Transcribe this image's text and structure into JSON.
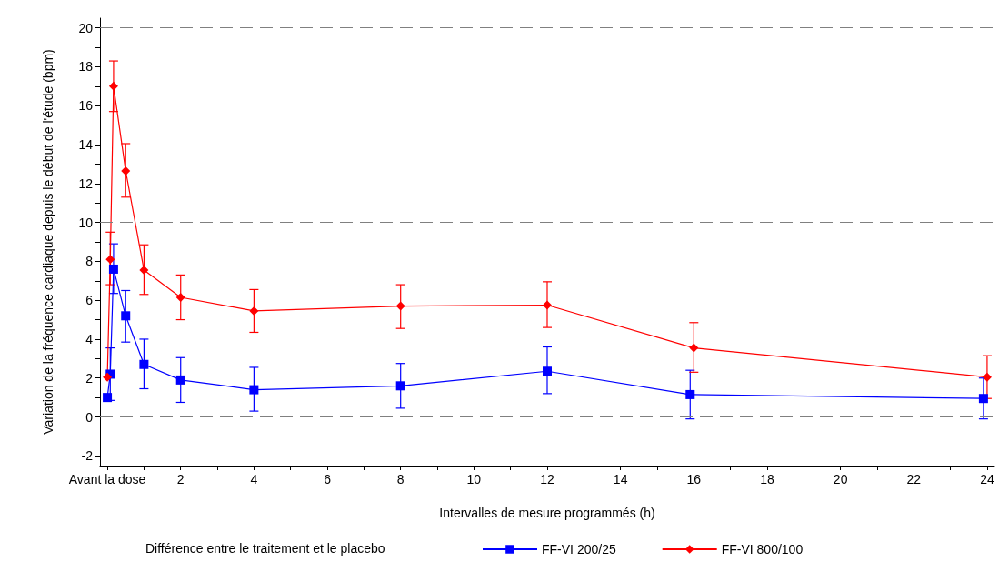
{
  "chart_data": {
    "type": "line",
    "xlabel": "Intervalles de mesure programmés (h)",
    "ylabel": "Variation de la fréquence cardiaque depuis le début de l'étude (bpm)",
    "legend_title": "Différence entre le traitement et le placebo",
    "legend": "bottom",
    "grid": false,
    "line_style": "solid",
    "xlim": [
      -0.2,
      24.2
    ],
    "xticks": [
      {
        "value": 0,
        "label": "Avant la dose"
      },
      {
        "value": 1,
        "label": null
      },
      2,
      {
        "value": 3,
        "label": null
      },
      4,
      {
        "value": 5,
        "label": null
      },
      6,
      {
        "value": 7,
        "label": null
      },
      8,
      {
        "value": 9,
        "label": null
      },
      10,
      {
        "value": 11,
        "label": null
      },
      12,
      {
        "value": 13,
        "label": null
      },
      14,
      {
        "value": 15,
        "label": null
      },
      16,
      {
        "value": 17,
        "label": null
      },
      18,
      {
        "value": 19,
        "label": null
      },
      20,
      {
        "value": 21,
        "label": null
      },
      22,
      {
        "value": 23,
        "label": null
      },
      24
    ],
    "ylim": [
      -2.5,
      20.5
    ],
    "yticks": [
      -2,
      {
        "value": -1,
        "label": null
      },
      0,
      {
        "value": 1,
        "label": null
      },
      2,
      {
        "value": 3,
        "label": null
      },
      4,
      {
        "value": 5,
        "label": null
      },
      6,
      {
        "value": 7,
        "label": null
      },
      8,
      {
        "value": 9,
        "label": null
      },
      10,
      {
        "value": 11,
        "label": null
      },
      12,
      {
        "value": 13,
        "label": null
      },
      14,
      {
        "value": 15,
        "label": null
      },
      16,
      {
        "value": 17,
        "label": null
      },
      18,
      {
        "value": 19,
        "label": null
      },
      20
    ],
    "ref_lines": [
      {
        "axis": "y",
        "value": 0,
        "color": "#808080",
        "line_style": "dashed"
      },
      {
        "axis": "y",
        "value": 10,
        "color": "#808080",
        "line_style": "dashed"
      },
      {
        "axis": "y",
        "value": 20,
        "color": "#808080",
        "line_style": "dashed"
      }
    ],
    "series": [
      {
        "name": "FF-VI 200/25",
        "color": "#0000ff",
        "marker": "square",
        "x": [
          0,
          0.08,
          0.17,
          0.5,
          1,
          2,
          4,
          8,
          12,
          15.9,
          23.9
        ],
        "values": [
          1.0,
          2.2,
          7.6,
          5.2,
          2.7,
          1.9,
          1.4,
          1.6,
          2.35,
          1.15,
          0.95
        ],
        "errors": [
          null,
          [
            0.85,
            3.55
          ],
          [
            6.35,
            8.9
          ],
          [
            3.85,
            6.5
          ],
          [
            1.45,
            4.0
          ],
          [
            0.75,
            3.05
          ],
          [
            0.3,
            2.55
          ],
          [
            0.45,
            2.75
          ],
          [
            1.2,
            3.6
          ],
          [
            -0.1,
            2.4
          ],
          [
            -0.1,
            2.0
          ]
        ]
      },
      {
        "name": "FF-VI 800/100",
        "color": "#ff0000",
        "marker": "diamond",
        "x": [
          0,
          0.08,
          0.17,
          0.5,
          1,
          2,
          4,
          8,
          12,
          16,
          24
        ],
        "values": [
          2.05,
          8.1,
          17.0,
          12.65,
          7.55,
          6.15,
          5.45,
          5.7,
          5.75,
          3.55,
          2.05
        ],
        "errors": [
          null,
          [
            6.8,
            9.5
          ],
          [
            15.7,
            18.3
          ],
          [
            11.3,
            14.05
          ],
          [
            6.3,
            8.85
          ],
          [
            5.0,
            7.3
          ],
          [
            4.35,
            6.55
          ],
          [
            4.55,
            6.8
          ],
          [
            4.6,
            6.95
          ],
          [
            2.3,
            4.85
          ],
          [
            0.95,
            3.15
          ]
        ]
      }
    ]
  }
}
